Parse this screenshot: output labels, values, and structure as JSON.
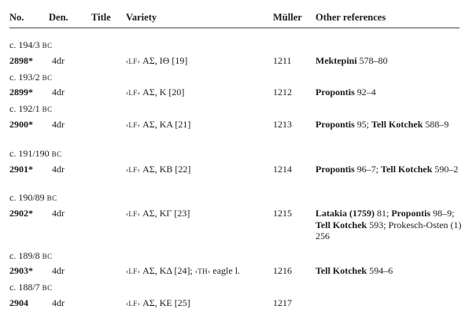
{
  "headers": {
    "no": "No.",
    "den": "Den.",
    "title": "Title",
    "variety": "Variety",
    "muller": "Müller",
    "other": "Other references"
  },
  "rows": [
    {
      "date": "c. 194/3",
      "era": "BC",
      "no": "2898*",
      "den": "4dr",
      "variety_sc": "‹LF›",
      "variety": "ΑΣ, ΙΘ [19]",
      "muller": "1211",
      "refs": [
        {
          "text": "Mektepini",
          "bold": true
        },
        {
          "text": " 578–80",
          "bold": false
        }
      ]
    },
    {
      "date": "c. 193/2",
      "era": "BC",
      "no": "2899*",
      "den": "4dr",
      "variety_sc": "‹LF›",
      "variety": "ΑΣ, Κ [20]",
      "muller": "1212",
      "refs": [
        {
          "text": "Propontis",
          "bold": true
        },
        {
          "text": " 92–4",
          "bold": false
        }
      ]
    },
    {
      "date": "c. 192/1",
      "era": "BC",
      "no": "2900*",
      "den": "4dr",
      "variety_sc": "‹LF›",
      "variety": "ΑΣ, ΚΑ [21]",
      "muller": "1213",
      "refs": [
        {
          "text": "Propontis",
          "bold": true
        },
        {
          "text": " 95; ",
          "bold": false
        },
        {
          "text": "Tell Kotchek",
          "bold": true
        },
        {
          "text": " 588–9",
          "bold": false
        }
      ]
    },
    {
      "date": "c. 191/190",
      "era": "BC",
      "no": "2901*",
      "den": "4dr",
      "variety_sc": "‹LF›",
      "variety": "ΑΣ, ΚΒ [22]",
      "muller": "1214",
      "refs": [
        {
          "text": "Propontis",
          "bold": true
        },
        {
          "text": " 96–7; ",
          "bold": false
        },
        {
          "text": "Tell Kotchek",
          "bold": true
        },
        {
          "text": " 590–2",
          "bold": false
        }
      ]
    },
    {
      "date": "c. 190/89",
      "era": "BC",
      "no": "2902*",
      "den": "4dr",
      "variety_sc": "‹LF›",
      "variety": "ΑΣ, ΚΓ [23]",
      "muller": "1215",
      "refs": [
        {
          "text": "Latakia (1759)",
          "bold": true
        },
        {
          "text": " 81; ",
          "bold": false
        },
        {
          "text": "Propontis",
          "bold": true
        },
        {
          "text": " 98–9; ",
          "bold": false
        },
        {
          "text": "Tell Kotchek",
          "bold": true
        },
        {
          "text": " 593; Prokesch-Osten (1) 256",
          "bold": false
        }
      ]
    },
    {
      "date": "c. 189/8",
      "era": "BC",
      "no": "2903*",
      "den": "4dr",
      "variety_sc": "‹LF›",
      "variety": "ΑΣ, ΚΔ [24];",
      "variety_sc2": "‹TH›",
      "variety2": "eagle l.",
      "muller": "1216",
      "refs": [
        {
          "text": "Tell Kotchek",
          "bold": true
        },
        {
          "text": " 594–6",
          "bold": false
        }
      ]
    },
    {
      "date": "c. 188/7",
      "era": "BC",
      "no": "2904",
      "den": "4dr",
      "variety_sc": "‹LF›",
      "variety": "ΑΣ, ΚΕ [25]",
      "muller": "1217",
      "refs": []
    }
  ]
}
